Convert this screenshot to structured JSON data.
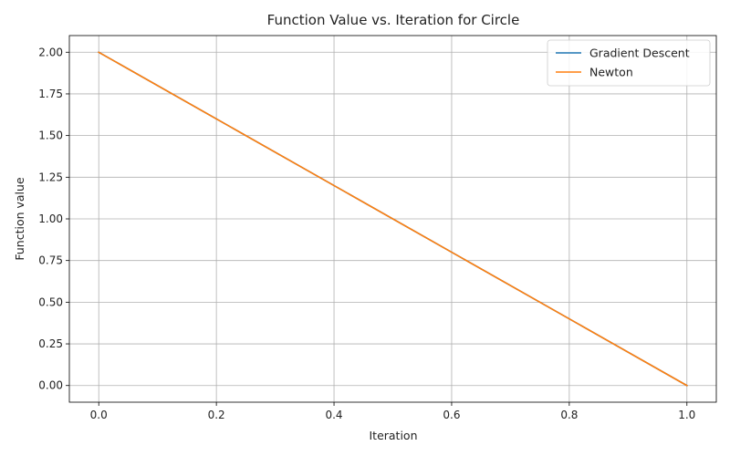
{
  "chart_data": {
    "type": "line",
    "title": "Function Value vs. Iteration for Circle",
    "xlabel": "Iteration",
    "ylabel": "Function value",
    "xlim": [
      -0.05,
      1.05
    ],
    "ylim": [
      -0.1,
      2.1
    ],
    "xticks": [
      0.0,
      0.2,
      0.4,
      0.6,
      0.8,
      1.0
    ],
    "xtick_labels": [
      "0.0",
      "0.2",
      "0.4",
      "0.6",
      "0.8",
      "1.0"
    ],
    "yticks": [
      0.0,
      0.25,
      0.5,
      0.75,
      1.0,
      1.25,
      1.5,
      1.75,
      2.0
    ],
    "ytick_labels": [
      "0.00",
      "0.25",
      "0.50",
      "0.75",
      "1.00",
      "1.25",
      "1.50",
      "1.75",
      "2.00"
    ],
    "grid": true,
    "legend_position": "top-right",
    "series": [
      {
        "name": "Gradient Descent",
        "color": "#1f77b4",
        "x": [
          0,
          1
        ],
        "y": [
          2.0,
          0.0
        ]
      },
      {
        "name": "Newton",
        "color": "#ff7f0e",
        "x": [
          0,
          1
        ],
        "y": [
          2.0,
          0.0
        ]
      }
    ]
  }
}
